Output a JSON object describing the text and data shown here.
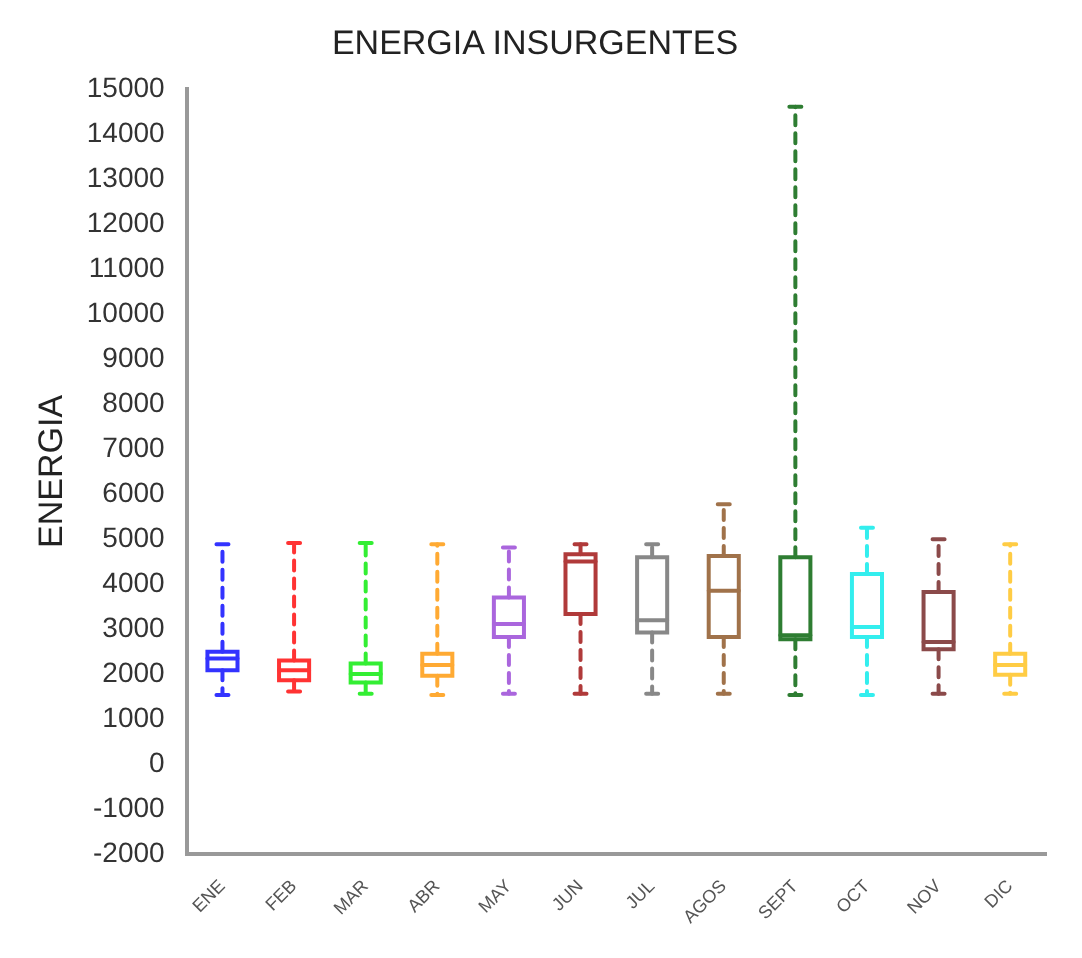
{
  "chart_data": {
    "type": "box",
    "title": "ENERGIA INSURGENTES",
    "ylabel": "ENERGIA",
    "categories": [
      "ENE",
      "FEB",
      "MAR",
      "ABR",
      "MAY",
      "JUN",
      "JUL",
      "AGOS",
      "SEPT",
      "OCT",
      "NOV",
      "DIC"
    ],
    "colors": [
      "#3333ff",
      "#ff3333",
      "#33ee33",
      "#ffaa33",
      "#aa66dd",
      "#b03a3a",
      "#888888",
      "#a0724a",
      "#2e7d32",
      "#33eeee",
      "#8b4a4a",
      "#ffcc44"
    ],
    "boxes": [
      {
        "low": 1530,
        "q1": 2080,
        "median": 2340,
        "q3": 2490,
        "high": 4880
      },
      {
        "low": 1610,
        "q1": 1860,
        "median": 2080,
        "q3": 2300,
        "high": 4910
      },
      {
        "low": 1560,
        "q1": 1810,
        "median": 2000,
        "q3": 2230,
        "high": 4910
      },
      {
        "low": 1530,
        "q1": 1960,
        "median": 2200,
        "q3": 2450,
        "high": 4880
      },
      {
        "low": 1560,
        "q1": 2820,
        "median": 3110,
        "q3": 3700,
        "high": 4810
      },
      {
        "low": 1560,
        "q1": 3330,
        "median": 4500,
        "q3": 4660,
        "high": 4880
      },
      {
        "low": 1560,
        "q1": 2920,
        "median": 3190,
        "q3": 4590,
        "high": 4880
      },
      {
        "low": 1560,
        "q1": 2820,
        "median": 3850,
        "q3": 4620,
        "high": 5770
      },
      {
        "low": 1530,
        "q1": 2770,
        "median": 2860,
        "q3": 4590,
        "high": 14600
      },
      {
        "low": 1530,
        "q1": 2820,
        "median": 3040,
        "q3": 4220,
        "high": 5250
      },
      {
        "low": 1560,
        "q1": 2550,
        "median": 2710,
        "q3": 3820,
        "high": 4990
      },
      {
        "low": 1560,
        "q1": 1980,
        "median": 2200,
        "q3": 2450,
        "high": 4880
      }
    ],
    "ylim": [
      -2000,
      15000
    ],
    "yticks": [
      -2000,
      -1000,
      0,
      1000,
      2000,
      3000,
      4000,
      5000,
      6000,
      7000,
      8000,
      9000,
      10000,
      11000,
      12000,
      13000,
      14000,
      15000
    ],
    "grid": false,
    "line_style": "dashed"
  }
}
